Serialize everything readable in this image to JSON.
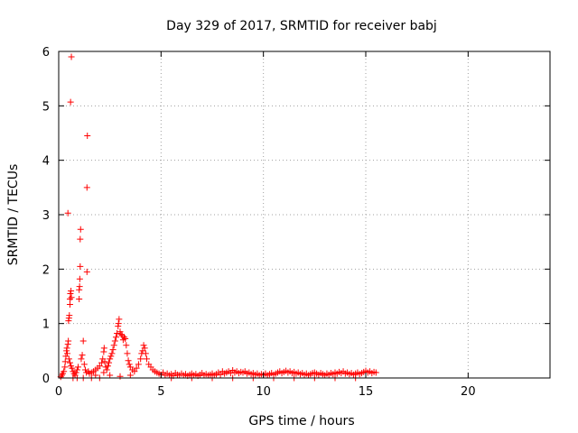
{
  "chart_data": {
    "type": "scatter",
    "title": "Day 329 of 2017, SRMTID for receiver babj",
    "xlabel": "GPS time / hours",
    "ylabel": "SRMTID / TECUs",
    "xlim": [
      0,
      24
    ],
    "ylim": [
      0,
      6
    ],
    "xticks": [
      0,
      5,
      10,
      15,
      20
    ],
    "yticks": [
      0,
      1,
      2,
      3,
      4,
      5,
      6
    ],
    "grid": true,
    "marker": "plus",
    "color": "#ff0000",
    "series": [
      {
        "name": "SRMTID",
        "points": [
          [
            0.1,
            0.02
          ],
          [
            0.15,
            0.05
          ],
          [
            0.2,
            0.08
          ],
          [
            0.25,
            0.12
          ],
          [
            0.3,
            0.2
          ],
          [
            0.32,
            0.3
          ],
          [
            0.35,
            0.4
          ],
          [
            0.38,
            0.5
          ],
          [
            0.4,
            0.55
          ],
          [
            0.42,
            0.45
          ],
          [
            0.45,
            0.62
          ],
          [
            0.47,
            0.68
          ],
          [
            0.48,
            1.05
          ],
          [
            0.5,
            1.1
          ],
          [
            0.52,
            1.15
          ],
          [
            0.55,
            1.35
          ],
          [
            0.55,
            1.45
          ],
          [
            0.57,
            1.55
          ],
          [
            0.6,
            1.6
          ],
          [
            0.62,
            1.48
          ],
          [
            0.45,
            3.03
          ],
          [
            0.58,
            5.07
          ],
          [
            0.62,
            5.9
          ],
          [
            0.5,
            0.35
          ],
          [
            0.55,
            0.28
          ],
          [
            0.6,
            0.22
          ],
          [
            0.65,
            0.18
          ],
          [
            0.7,
            0.12
          ],
          [
            0.75,
            0.08
          ],
          [
            0.8,
            0.05
          ],
          [
            0.85,
            0.1
          ],
          [
            0.9,
            0.15
          ],
          [
            0.95,
            0.2
          ],
          [
            1.0,
            1.45
          ],
          [
            1.0,
            1.62
          ],
          [
            1.02,
            1.68
          ],
          [
            1.03,
            1.82
          ],
          [
            1.05,
            2.05
          ],
          [
            1.05,
            2.55
          ],
          [
            1.07,
            2.73
          ],
          [
            1.1,
            0.35
          ],
          [
            1.15,
            0.42
          ],
          [
            1.2,
            0.68
          ],
          [
            1.25,
            0.25
          ],
          [
            1.3,
            0.15
          ],
          [
            1.35,
            0.1
          ],
          [
            1.38,
            1.95
          ],
          [
            1.38,
            3.5
          ],
          [
            1.4,
            4.45
          ],
          [
            1.45,
            0.12
          ],
          [
            1.5,
            0.08
          ],
          [
            1.6,
            0.1
          ],
          [
            1.7,
            0.12
          ],
          [
            1.8,
            0.15
          ],
          [
            1.9,
            0.18
          ],
          [
            2.0,
            0.22
          ],
          [
            2.1,
            0.28
          ],
          [
            2.15,
            0.35
          ],
          [
            2.2,
            0.48
          ],
          [
            2.22,
            0.55
          ],
          [
            2.25,
            0.3
          ],
          [
            2.3,
            0.2
          ],
          [
            2.35,
            0.15
          ],
          [
            2.4,
            0.22
          ],
          [
            2.45,
            0.28
          ],
          [
            2.5,
            0.35
          ],
          [
            2.55,
            0.4
          ],
          [
            2.6,
            0.45
          ],
          [
            2.65,
            0.52
          ],
          [
            2.7,
            0.6
          ],
          [
            2.75,
            0.68
          ],
          [
            2.8,
            0.75
          ],
          [
            2.85,
            0.82
          ],
          [
            2.9,
            0.95
          ],
          [
            2.92,
            1.0
          ],
          [
            2.95,
            1.08
          ],
          [
            3.0,
            0.85
          ],
          [
            3.05,
            0.8
          ],
          [
            3.1,
            0.78
          ],
          [
            3.15,
            0.7
          ],
          [
            3.2,
            0.75
          ],
          [
            3.25,
            0.72
          ],
          [
            3.3,
            0.6
          ],
          [
            3.35,
            0.45
          ],
          [
            3.4,
            0.32
          ],
          [
            3.45,
            0.25
          ],
          [
            3.5,
            0.2
          ],
          [
            3.6,
            0.15
          ],
          [
            3.7,
            0.12
          ],
          [
            3.8,
            0.18
          ],
          [
            3.9,
            0.25
          ],
          [
            4.0,
            0.35
          ],
          [
            4.05,
            0.45
          ],
          [
            4.1,
            0.5
          ],
          [
            4.15,
            0.6
          ],
          [
            4.2,
            0.55
          ],
          [
            4.25,
            0.45
          ],
          [
            4.3,
            0.35
          ],
          [
            4.4,
            0.25
          ],
          [
            4.5,
            0.2
          ],
          [
            4.6,
            0.15
          ],
          [
            4.7,
            0.12
          ],
          [
            4.8,
            0.1
          ],
          [
            4.9,
            0.08
          ],
          [
            5.0,
            0.06
          ],
          [
            2.5,
            0.05
          ],
          [
            3.0,
            0.03
          ],
          [
            3.5,
            0.05
          ],
          [
            1.8,
            0.05
          ],
          [
            2.2,
            0.1
          ],
          [
            5.1,
            0.1
          ],
          [
            5.2,
            0.05
          ],
          [
            5.3,
            0.08
          ],
          [
            5.4,
            0.05
          ],
          [
            5.5,
            0.07
          ],
          [
            5.6,
            0.04
          ],
          [
            5.7,
            0.09
          ],
          [
            5.8,
            0.06
          ],
          [
            5.9,
            0.05
          ],
          [
            6.0,
            0.08
          ],
          [
            6.1,
            0.05
          ],
          [
            6.2,
            0.07
          ],
          [
            6.3,
            0.04
          ],
          [
            6.4,
            0.06
          ],
          [
            6.5,
            0.08
          ],
          [
            6.6,
            0.05
          ],
          [
            6.7,
            0.07
          ],
          [
            6.8,
            0.04
          ],
          [
            6.9,
            0.06
          ],
          [
            7.0,
            0.09
          ],
          [
            7.1,
            0.05
          ],
          [
            7.2,
            0.07
          ],
          [
            7.3,
            0.05
          ],
          [
            7.4,
            0.06
          ],
          [
            7.5,
            0.08
          ],
          [
            7.6,
            0.05
          ],
          [
            7.7,
            0.07
          ],
          [
            7.8,
            0.1
          ],
          [
            7.9,
            0.06
          ],
          [
            8.0,
            0.12
          ],
          [
            8.1,
            0.08
          ],
          [
            8.2,
            0.1
          ],
          [
            8.3,
            0.12
          ],
          [
            8.4,
            0.09
          ],
          [
            8.5,
            0.14
          ],
          [
            8.6,
            0.1
          ],
          [
            8.7,
            0.12
          ],
          [
            8.8,
            0.09
          ],
          [
            8.9,
            0.11
          ],
          [
            9.0,
            0.1
          ],
          [
            9.1,
            0.12
          ],
          [
            9.2,
            0.08
          ],
          [
            9.3,
            0.1
          ],
          [
            9.4,
            0.07
          ],
          [
            9.5,
            0.09
          ],
          [
            9.6,
            0.06
          ],
          [
            9.7,
            0.08
          ],
          [
            9.8,
            0.05
          ],
          [
            9.9,
            0.07
          ],
          [
            10.0,
            0.06
          ],
          [
            10.1,
            0.08
          ],
          [
            10.2,
            0.05
          ],
          [
            10.3,
            0.07
          ],
          [
            10.4,
            0.09
          ],
          [
            10.5,
            0.06
          ],
          [
            10.6,
            0.08
          ],
          [
            10.7,
            0.1
          ],
          [
            10.8,
            0.12
          ],
          [
            10.9,
            0.09
          ],
          [
            11.0,
            0.11
          ],
          [
            11.1,
            0.13
          ],
          [
            11.2,
            0.1
          ],
          [
            11.3,
            0.12
          ],
          [
            11.4,
            0.09
          ],
          [
            11.5,
            0.11
          ],
          [
            11.6,
            0.08
          ],
          [
            11.7,
            0.1
          ],
          [
            11.8,
            0.07
          ],
          [
            11.9,
            0.09
          ],
          [
            12.0,
            0.06
          ],
          [
            12.1,
            0.08
          ],
          [
            12.2,
            0.05
          ],
          [
            12.3,
            0.07
          ],
          [
            12.4,
            0.09
          ],
          [
            12.5,
            0.1
          ],
          [
            12.6,
            0.08
          ],
          [
            12.7,
            0.06
          ],
          [
            12.8,
            0.09
          ],
          [
            12.9,
            0.07
          ],
          [
            13.0,
            0.05
          ],
          [
            13.1,
            0.08
          ],
          [
            13.2,
            0.06
          ],
          [
            13.3,
            0.09
          ],
          [
            13.4,
            0.07
          ],
          [
            13.5,
            0.1
          ],
          [
            13.6,
            0.08
          ],
          [
            13.7,
            0.11
          ],
          [
            13.8,
            0.09
          ],
          [
            13.9,
            0.12
          ],
          [
            14.0,
            0.08
          ],
          [
            14.1,
            0.1
          ],
          [
            14.2,
            0.07
          ],
          [
            14.3,
            0.09
          ],
          [
            14.4,
            0.06
          ],
          [
            14.5,
            0.08
          ],
          [
            14.6,
            0.1
          ],
          [
            14.7,
            0.07
          ],
          [
            14.8,
            0.09
          ],
          [
            14.9,
            0.11
          ],
          [
            15.0,
            0.13
          ],
          [
            15.1,
            0.1
          ],
          [
            15.2,
            0.12
          ],
          [
            15.3,
            0.09
          ],
          [
            15.4,
            0.11
          ],
          [
            15.5,
            0.1
          ],
          [
            5.5,
            0.0
          ],
          [
            6.5,
            0.0
          ],
          [
            7.5,
            0.0
          ],
          [
            8.5,
            0.0
          ],
          [
            9.5,
            0.0
          ],
          [
            10.5,
            0.0
          ],
          [
            11.5,
            0.0
          ],
          [
            12.5,
            0.0
          ],
          [
            13.5,
            0.0
          ],
          [
            14.5,
            0.0
          ],
          [
            0.7,
            0.0
          ],
          [
            0.9,
            0.0
          ],
          [
            1.2,
            0.0
          ],
          [
            1.6,
            0.0
          ],
          [
            2.0,
            0.0
          ]
        ]
      }
    ]
  }
}
